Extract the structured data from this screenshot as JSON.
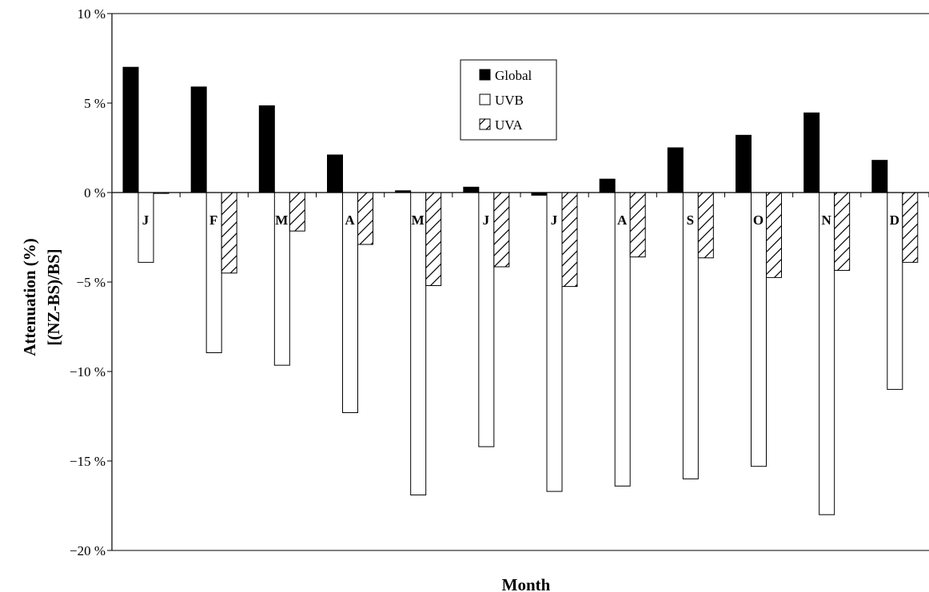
{
  "chart_data": {
    "type": "bar",
    "title": "",
    "xlabel": "Month",
    "ylabel": [
      "Attenuation (%)",
      "[(NZ-BS)/BS]"
    ],
    "categories": [
      "J",
      "F",
      "M",
      "A",
      "M",
      "J",
      "J",
      "A",
      "S",
      "O",
      "N",
      "D"
    ],
    "ylim": [
      -20,
      10
    ],
    "ytick_labels": [
      "10 %",
      "5 %",
      "0 %",
      "−5 %",
      "−10 %",
      "−15 %",
      "−20 %"
    ],
    "grid": false,
    "legend_position": "top-center",
    "series": [
      {
        "name": "Global",
        "fill": "black",
        "values": [
          7.0,
          5.9,
          4.85,
          2.1,
          0.1,
          0.3,
          -0.15,
          0.75,
          2.5,
          3.2,
          4.45,
          1.8
        ]
      },
      {
        "name": "UVB",
        "fill": "white",
        "values": [
          -3.9,
          -8.95,
          -9.65,
          -12.3,
          -16.9,
          -14.2,
          -16.7,
          -16.4,
          -16.0,
          -15.3,
          -18.0,
          -11.0
        ]
      },
      {
        "name": "UVA",
        "fill": "hatch",
        "values": [
          -0.05,
          -4.5,
          -2.15,
          -2.9,
          -5.2,
          -4.15,
          -5.25,
          -3.6,
          -3.65,
          -4.75,
          -4.35,
          -3.9
        ]
      }
    ]
  }
}
